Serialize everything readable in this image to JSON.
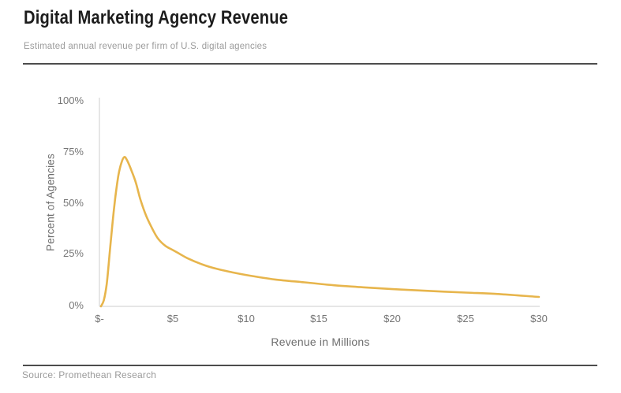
{
  "header": {
    "title": "Digital Marketing Agency Revenue",
    "subtitle": "Estimated annual revenue per firm of U.S. digital agencies"
  },
  "footer": {
    "source": "Source: Promethean Research"
  },
  "chart_data": {
    "type": "line",
    "title": "Digital Marketing Agency Revenue",
    "subtitle": "Estimated annual revenue per firm of U.S. digital agencies",
    "xlabel": "Revenue in Millions",
    "ylabel": "Percent of Agencies",
    "x_ticks": [
      "$-",
      "$5",
      "$10",
      "$15",
      "$20",
      "$25",
      "$30"
    ],
    "x_tick_values": [
      0,
      5,
      10,
      15,
      20,
      25,
      30
    ],
    "y_ticks": [
      "0%",
      "25%",
      "50%",
      "75%",
      "100%"
    ],
    "y_tick_values": [
      0,
      25,
      50,
      75,
      100
    ],
    "xlim": [
      0,
      30
    ],
    "ylim": [
      0,
      100
    ],
    "grid": false,
    "legend_position": "none",
    "line_color": "#E7B54C",
    "axis_line_color": "#D6D6D6",
    "peak": {
      "x": 1.7,
      "y": 73
    },
    "series": [
      {
        "name": "Percent of Agencies",
        "points": [
          [
            0.1,
            0
          ],
          [
            0.3,
            3
          ],
          [
            0.5,
            11
          ],
          [
            0.7,
            26
          ],
          [
            0.9,
            41
          ],
          [
            1.1,
            54
          ],
          [
            1.3,
            64
          ],
          [
            1.5,
            70
          ],
          [
            1.7,
            72.8
          ],
          [
            1.9,
            71
          ],
          [
            2.2,
            66
          ],
          [
            2.5,
            60
          ],
          [
            2.8,
            52
          ],
          [
            3.2,
            44
          ],
          [
            3.6,
            38
          ],
          [
            4.0,
            33
          ],
          [
            4.5,
            29.5
          ],
          [
            5.0,
            27.5
          ],
          [
            5.5,
            25.5
          ],
          [
            6.0,
            23.5
          ],
          [
            7.0,
            20.5
          ],
          [
            8.0,
            18.3
          ],
          [
            9.0,
            16.7
          ],
          [
            10,
            15.3
          ],
          [
            12,
            13.1
          ],
          [
            14,
            11.7
          ],
          [
            16,
            10.3
          ],
          [
            18,
            9.3
          ],
          [
            20,
            8.4
          ],
          [
            22,
            7.7
          ],
          [
            25,
            6.7
          ],
          [
            27,
            6.1
          ],
          [
            30,
            4.6
          ]
        ]
      }
    ],
    "source": "Source: Promethean Research"
  }
}
